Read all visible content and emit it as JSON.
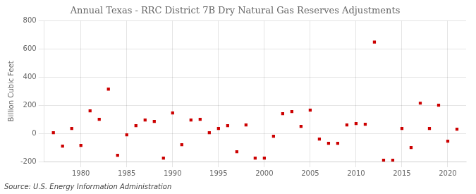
{
  "chart_data": {
    "type": "scatter",
    "title": "Annual Texas - RRC District 7B Dry Natural Gas Reserves Adjustments",
    "ylabel": "Billion Cubic Feet",
    "annotation": "Source: U.S. Energy Information Administration",
    "x": [
      1977,
      1978,
      1979,
      1980,
      1981,
      1982,
      1983,
      1984,
      1985,
      1986,
      1987,
      1988,
      1989,
      1990,
      1991,
      1992,
      1993,
      1994,
      1995,
      1996,
      1997,
      1998,
      1999,
      2000,
      2001,
      2002,
      2003,
      2004,
      2005,
      2006,
      2007,
      2008,
      2009,
      2010,
      2011,
      2012,
      2013,
      2014,
      2015,
      2016,
      2017,
      2018,
      2019,
      2020,
      2021
    ],
    "values": [
      5,
      -90,
      35,
      -85,
      160,
      100,
      315,
      -155,
      -10,
      55,
      95,
      85,
      -175,
      145,
      -80,
      95,
      100,
      5,
      35,
      55,
      -130,
      60,
      -175,
      -175,
      -20,
      140,
      155,
      50,
      165,
      -40,
      -70,
      -70,
      60,
      70,
      65,
      650,
      -190,
      -190,
      35,
      -100,
      215,
      35,
      200,
      -55,
      30
    ],
    "color": "#cc0000",
    "marker": "square",
    "xlim": [
      1976,
      2022
    ],
    "ylim": [
      -200,
      800
    ],
    "xticks": [
      1980,
      1985,
      1990,
      1995,
      2000,
      2005,
      2010,
      2015,
      2020
    ],
    "yticks": [
      -200,
      0,
      200,
      400,
      600,
      800
    ],
    "grid": true
  }
}
